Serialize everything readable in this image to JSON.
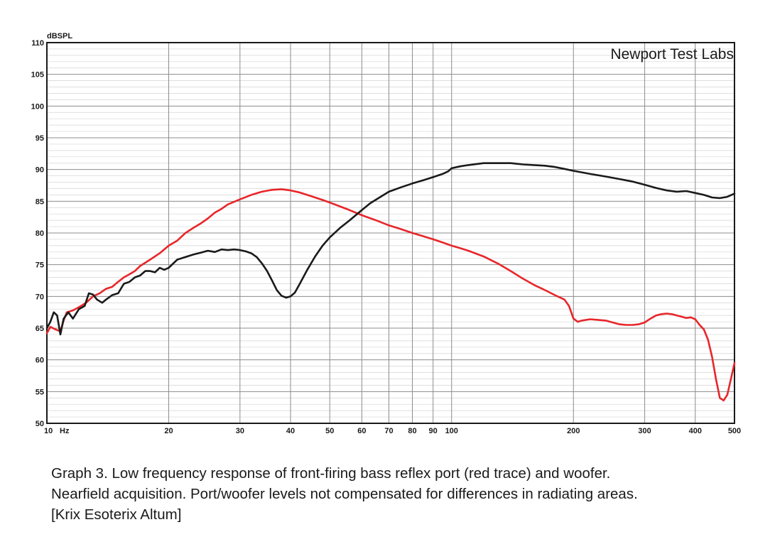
{
  "chart_data": {
    "type": "line",
    "title": "",
    "watermark": "Newport Test Labs",
    "ylabel": "dBSPL",
    "xunit": "Hz",
    "xscale": "log",
    "xlim": [
      10,
      500
    ],
    "ylim": [
      50,
      110
    ],
    "grid": true,
    "legend": "none",
    "xticks": [
      10,
      20,
      30,
      40,
      50,
      60,
      70,
      80,
      90,
      100,
      200,
      300,
      400,
      500
    ],
    "xtick_labels": [
      "10",
      "20",
      "30",
      "40",
      "50",
      "60",
      "70",
      "80",
      "90",
      "100",
      "200",
      "300",
      "400",
      "500"
    ],
    "yticks": [
      50,
      55,
      60,
      65,
      70,
      75,
      80,
      85,
      90,
      95,
      100,
      105,
      110
    ],
    "ytick_labels": [
      "50",
      "55",
      "60",
      "65",
      "70",
      "75",
      "80",
      "85",
      "90",
      "95",
      "100",
      "105",
      "110"
    ],
    "series": [
      {
        "color": "#e8262a",
        "points": [
          [
            10.0,
            64.2
          ],
          [
            10.2,
            65.2
          ],
          [
            10.5,
            64.8
          ],
          [
            10.8,
            64.5
          ],
          [
            11.0,
            66.2
          ],
          [
            11.2,
            67.5
          ],
          [
            11.6,
            67.8
          ],
          [
            12.0,
            68.3
          ],
          [
            12.5,
            69.0
          ],
          [
            13.0,
            70.0
          ],
          [
            13.5,
            70.5
          ],
          [
            14.0,
            71.2
          ],
          [
            14.5,
            71.5
          ],
          [
            15.0,
            72.3
          ],
          [
            15.5,
            73.0
          ],
          [
            16.0,
            73.5
          ],
          [
            16.5,
            74.0
          ],
          [
            17.0,
            74.8
          ],
          [
            18.0,
            75.8
          ],
          [
            19.0,
            76.8
          ],
          [
            20.0,
            78.0
          ],
          [
            21.0,
            78.8
          ],
          [
            22.0,
            80.0
          ],
          [
            23.0,
            80.8
          ],
          [
            24.0,
            81.5
          ],
          [
            25.0,
            82.3
          ],
          [
            26.0,
            83.2
          ],
          [
            27.0,
            83.8
          ],
          [
            28.0,
            84.5
          ],
          [
            30.0,
            85.3
          ],
          [
            32.0,
            86.0
          ],
          [
            34.0,
            86.5
          ],
          [
            36.0,
            86.8
          ],
          [
            38.0,
            86.9
          ],
          [
            40.0,
            86.7
          ],
          [
            42.0,
            86.4
          ],
          [
            45.0,
            85.8
          ],
          [
            48.0,
            85.2
          ],
          [
            50.0,
            84.8
          ],
          [
            55.0,
            83.8
          ],
          [
            60.0,
            82.8
          ],
          [
            65.0,
            82.0
          ],
          [
            70.0,
            81.2
          ],
          [
            75.0,
            80.6
          ],
          [
            80.0,
            80.0
          ],
          [
            85.0,
            79.5
          ],
          [
            90.0,
            79.0
          ],
          [
            95.0,
            78.5
          ],
          [
            100.0,
            78.0
          ],
          [
            105.0,
            77.6
          ],
          [
            110.0,
            77.2
          ],
          [
            120.0,
            76.3
          ],
          [
            130.0,
            75.2
          ],
          [
            140.0,
            74.0
          ],
          [
            150.0,
            72.8
          ],
          [
            160.0,
            71.8
          ],
          [
            170.0,
            71.0
          ],
          [
            180.0,
            70.2
          ],
          [
            190.0,
            69.5
          ],
          [
            195.0,
            68.5
          ],
          [
            200.0,
            66.5
          ],
          [
            205.0,
            66.0
          ],
          [
            210.0,
            66.2
          ],
          [
            220.0,
            66.4
          ],
          [
            230.0,
            66.3
          ],
          [
            240.0,
            66.2
          ],
          [
            250.0,
            65.9
          ],
          [
            260.0,
            65.6
          ],
          [
            270.0,
            65.5
          ],
          [
            280.0,
            65.5
          ],
          [
            290.0,
            65.6
          ],
          [
            300.0,
            65.9
          ],
          [
            310.0,
            66.5
          ],
          [
            320.0,
            67.0
          ],
          [
            330.0,
            67.2
          ],
          [
            340.0,
            67.3
          ],
          [
            350.0,
            67.2
          ],
          [
            360.0,
            67.0
          ],
          [
            370.0,
            66.8
          ],
          [
            380.0,
            66.6
          ],
          [
            390.0,
            66.7
          ],
          [
            400.0,
            66.4
          ],
          [
            410.0,
            65.5
          ],
          [
            420.0,
            64.8
          ],
          [
            430.0,
            63.2
          ],
          [
            440.0,
            60.5
          ],
          [
            450.0,
            57.0
          ],
          [
            460.0,
            54.0
          ],
          [
            470.0,
            53.6
          ],
          [
            480.0,
            54.5
          ],
          [
            490.0,
            57.0
          ],
          [
            500.0,
            59.5
          ]
        ]
      },
      {
        "color": "#1a1a1a",
        "points": [
          [
            10.0,
            65.0
          ],
          [
            10.2,
            66.0
          ],
          [
            10.4,
            67.5
          ],
          [
            10.6,
            67.0
          ],
          [
            10.8,
            64.0
          ],
          [
            11.0,
            66.5
          ],
          [
            11.3,
            67.5
          ],
          [
            11.6,
            66.5
          ],
          [
            12.0,
            68.0
          ],
          [
            12.4,
            68.5
          ],
          [
            12.7,
            70.5
          ],
          [
            13.0,
            70.3
          ],
          [
            13.3,
            69.5
          ],
          [
            13.7,
            69.0
          ],
          [
            14.0,
            69.5
          ],
          [
            14.5,
            70.2
          ],
          [
            15.0,
            70.5
          ],
          [
            15.5,
            72.0
          ],
          [
            16.0,
            72.3
          ],
          [
            16.5,
            73.0
          ],
          [
            17.0,
            73.3
          ],
          [
            17.5,
            74.0
          ],
          [
            18.0,
            74.0
          ],
          [
            18.5,
            73.8
          ],
          [
            19.0,
            74.5
          ],
          [
            19.5,
            74.2
          ],
          [
            20.0,
            74.5
          ],
          [
            21.0,
            75.8
          ],
          [
            22.0,
            76.2
          ],
          [
            23.0,
            76.6
          ],
          [
            24.0,
            76.9
          ],
          [
            25.0,
            77.2
          ],
          [
            26.0,
            77.0
          ],
          [
            27.0,
            77.4
          ],
          [
            28.0,
            77.3
          ],
          [
            29.0,
            77.4
          ],
          [
            30.0,
            77.3
          ],
          [
            31.0,
            77.1
          ],
          [
            32.0,
            76.8
          ],
          [
            33.0,
            76.2
          ],
          [
            34.0,
            75.2
          ],
          [
            35.0,
            74.0
          ],
          [
            36.0,
            72.5
          ],
          [
            37.0,
            71.0
          ],
          [
            38.0,
            70.1
          ],
          [
            39.0,
            69.8
          ],
          [
            40.0,
            70.0
          ],
          [
            41.0,
            70.6
          ],
          [
            42.0,
            71.8
          ],
          [
            44.0,
            74.2
          ],
          [
            46.0,
            76.3
          ],
          [
            48.0,
            78.0
          ],
          [
            50.0,
            79.3
          ],
          [
            53.0,
            80.8
          ],
          [
            56.0,
            82.0
          ],
          [
            60.0,
            83.6
          ],
          [
            63.0,
            84.7
          ],
          [
            66.0,
            85.5
          ],
          [
            70.0,
            86.5
          ],
          [
            75.0,
            87.2
          ],
          [
            80.0,
            87.8
          ],
          [
            85.0,
            88.3
          ],
          [
            90.0,
            88.8
          ],
          [
            95.0,
            89.3
          ],
          [
            98.0,
            89.7
          ],
          [
            100.0,
            90.2
          ],
          [
            105.0,
            90.5
          ],
          [
            110.0,
            90.7
          ],
          [
            120.0,
            91.0
          ],
          [
            130.0,
            91.0
          ],
          [
            140.0,
            91.0
          ],
          [
            150.0,
            90.8
          ],
          [
            160.0,
            90.7
          ],
          [
            170.0,
            90.6
          ],
          [
            180.0,
            90.4
          ],
          [
            190.0,
            90.1
          ],
          [
            200.0,
            89.8
          ],
          [
            220.0,
            89.3
          ],
          [
            240.0,
            88.9
          ],
          [
            260.0,
            88.5
          ],
          [
            280.0,
            88.1
          ],
          [
            300.0,
            87.6
          ],
          [
            320.0,
            87.1
          ],
          [
            340.0,
            86.7
          ],
          [
            360.0,
            86.5
          ],
          [
            380.0,
            86.6
          ],
          [
            400.0,
            86.3
          ],
          [
            420.0,
            86.0
          ],
          [
            440.0,
            85.6
          ],
          [
            460.0,
            85.5
          ],
          [
            480.0,
            85.7
          ],
          [
            500.0,
            86.2
          ]
        ]
      }
    ]
  },
  "caption": {
    "line1": "Graph 3. Low frequency response of front-firing bass reflex port (red trace) and woofer.",
    "line2": "Nearfield acquisition. Port/woofer levels not compensated for differences in radiating areas.",
    "line3": "[Krix Esoterix Altum]"
  }
}
